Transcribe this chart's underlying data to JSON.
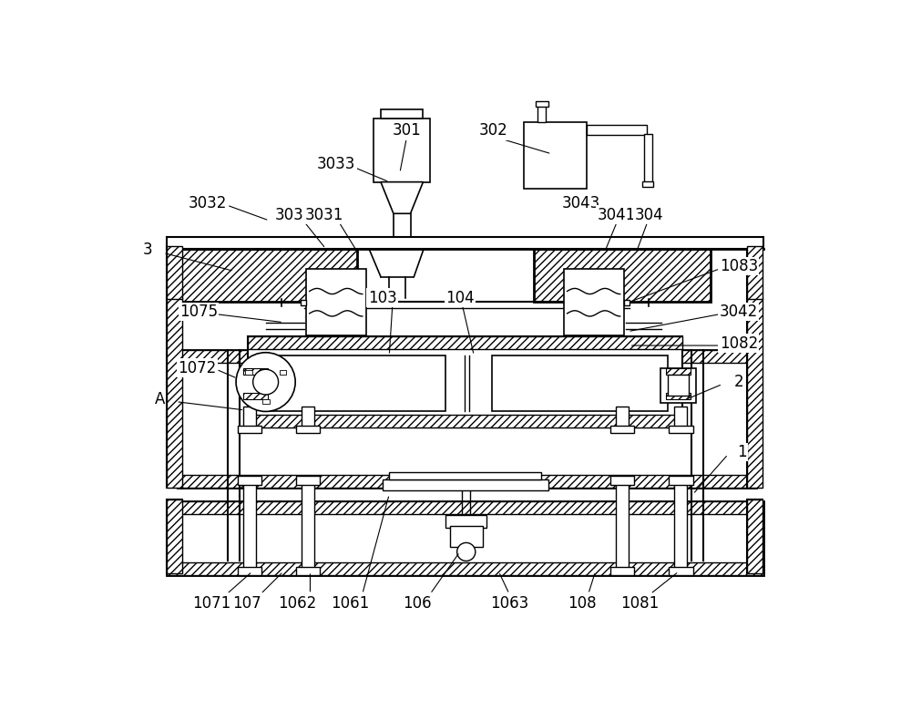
{
  "bg_color": "#ffffff",
  "lc": "#000000",
  "fig_w": 10.0,
  "fig_h": 7.91,
  "dpi": 100
}
